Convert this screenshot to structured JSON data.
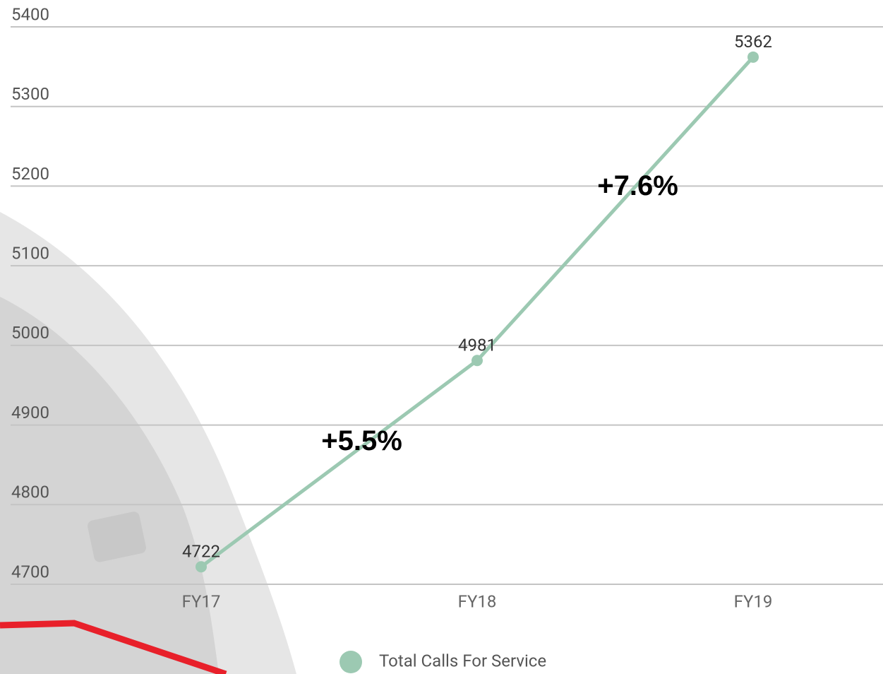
{
  "chart_data": {
    "type": "line",
    "categories": [
      "FY17",
      "FY18",
      "FY19"
    ],
    "series": [
      {
        "name": "Total Calls For Service",
        "color": "#9cc9b2",
        "values": [
          4722,
          4981,
          5362
        ]
      }
    ],
    "ylim": [
      4700,
      5400
    ],
    "yticks": [
      4700,
      4800,
      4900,
      5000,
      5100,
      5200,
      5300,
      5400
    ],
    "grid": true,
    "annotations": [
      "+5.5%",
      "+7.6%"
    ],
    "legend": "bottom"
  }
}
